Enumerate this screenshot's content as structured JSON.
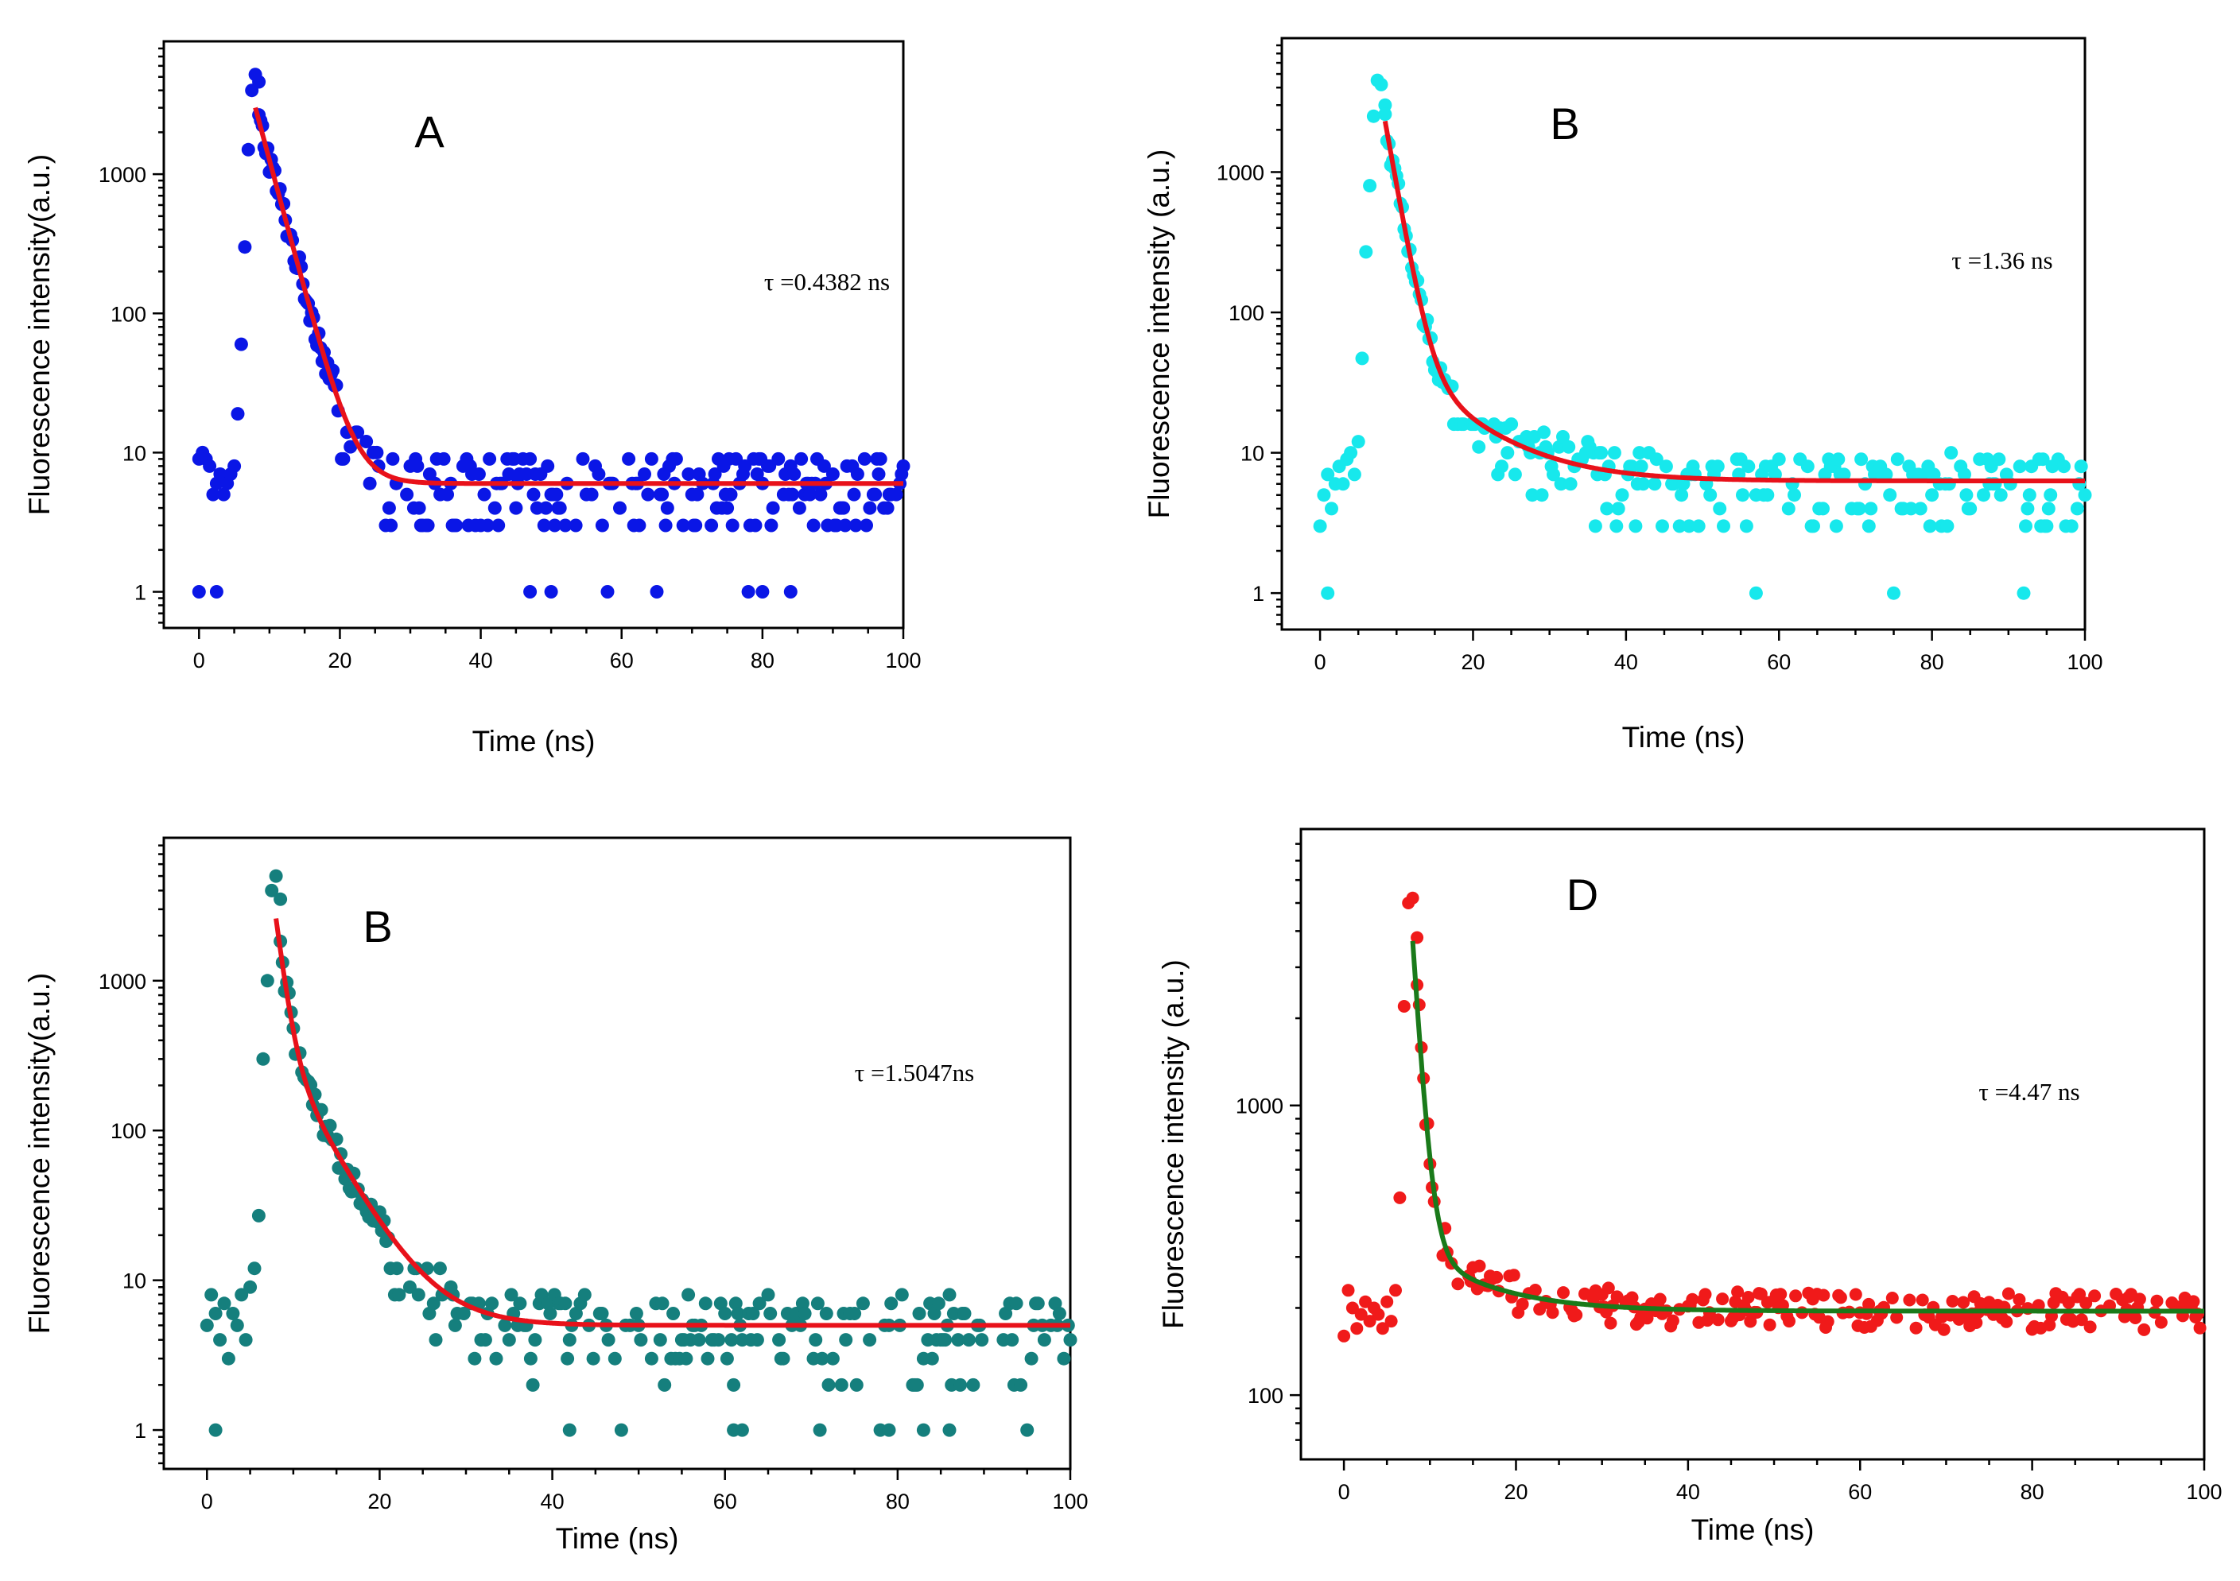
{
  "chart_data": [
    {
      "type": "scatter",
      "panel_label": "A",
      "annotation": "τ  =0.4382 ns",
      "xlabel": "Time (ns)",
      "ylabel": "Fluorescence intensity(a.u.)",
      "xscale": "linear",
      "yscale": "log",
      "xlim": [
        -5,
        100
      ],
      "ylim": [
        0.55,
        9000
      ],
      "xticks": [
        0,
        20,
        40,
        60,
        80,
        100
      ],
      "yticks": [
        1,
        10,
        100,
        1000
      ],
      "xticklabels": [
        "0",
        "20",
        "40",
        "60",
        "80",
        "100"
      ],
      "yticklabels": [
        "1",
        "10",
        "100",
        "1000"
      ],
      "scatter_color": "#0a16e6",
      "fit_color": "#e8111a",
      "series": [
        {
          "name": "data",
          "peak": {
            "rise": [
              [
                0,
                9
              ],
              [
                0.5,
                10
              ],
              [
                1,
                9
              ],
              [
                1.5,
                8
              ],
              [
                2,
                5
              ],
              [
                2.5,
                6
              ],
              [
                3,
                7
              ],
              [
                3.5,
                5
              ],
              [
                4,
                6
              ],
              [
                4.5,
                7
              ],
              [
                5,
                8
              ],
              [
                5.5,
                19
              ],
              [
                6,
                60
              ],
              [
                6.5,
                300
              ],
              [
                7,
                1500
              ],
              [
                7.5,
                4000
              ],
              [
                8,
                5200
              ],
              [
                8.5,
                4600
              ]
            ]
          },
          "decay_peak": 3000,
          "decay_tau": 2.3,
          "baseline": 6,
          "noise_floor_values": [
            1,
            2,
            3,
            4,
            5,
            6,
            7,
            8,
            9,
            10,
            11,
            12,
            13,
            14
          ],
          "low_outliers": [
            [
              0,
              1
            ],
            [
              2.5,
              1
            ],
            [
              47,
              1
            ],
            [
              50,
              1
            ],
            [
              58,
              1
            ],
            [
              65,
              1
            ],
            [
              78,
              1
            ],
            [
              80,
              1
            ],
            [
              84,
              1
            ]
          ]
        },
        {
          "name": "fit",
          "start_x": 8,
          "end_x": 100,
          "peak_value": 3000,
          "tau": 2.3,
          "baseline": 6
        }
      ]
    },
    {
      "type": "scatter",
      "panel_label": "B",
      "annotation": "τ  =1.36 ns",
      "xlabel": "Time (ns)",
      "ylabel": "Fluorescence intensity (a.u.)",
      "xscale": "linear",
      "yscale": "log",
      "xlim": [
        -5,
        100
      ],
      "ylim": [
        0.55,
        9000
      ],
      "xticks": [
        0,
        20,
        40,
        60,
        80,
        100
      ],
      "yticks": [
        1,
        10,
        100,
        1000
      ],
      "xticklabels": [
        "0",
        "20",
        "40",
        "60",
        "80",
        "100"
      ],
      "yticklabels": [
        "1",
        "10",
        "100",
        "1000"
      ],
      "scatter_color": "#17e8ec",
      "fit_color": "#e8111a",
      "series": [
        {
          "name": "data",
          "peak": {
            "rise": [
              [
                0,
                3
              ],
              [
                0.5,
                5
              ],
              [
                1,
                7
              ],
              [
                1.5,
                4
              ],
              [
                2,
                6
              ],
              [
                2.5,
                8
              ],
              [
                3,
                6
              ],
              [
                3.5,
                9
              ],
              [
                4,
                10
              ],
              [
                4.5,
                7
              ],
              [
                5,
                12
              ],
              [
                5.5,
                47
              ],
              [
                6,
                270
              ],
              [
                6.5,
                800
              ],
              [
                7,
                2500
              ],
              [
                7.5,
                4500
              ],
              [
                8,
                4200
              ],
              [
                8.5,
                3000
              ]
            ]
          },
          "decay_peak": 2300,
          "decay_tau": 1.4,
          "decay_tau2": 8,
          "decay_amp2": 45,
          "baseline": 6.3,
          "noise_floor_values": [
            3,
            4,
            5,
            6,
            7,
            8,
            9,
            10,
            11,
            12,
            13,
            14,
            15,
            16
          ],
          "low_outliers": [
            [
              1,
              1
            ],
            [
              57,
              1
            ],
            [
              75,
              1
            ],
            [
              92,
              1
            ]
          ]
        },
        {
          "name": "fit",
          "start_x": 8.5,
          "end_x": 100,
          "peak_value": 2300,
          "tau": 1.4,
          "tau2": 8,
          "amp2": 45,
          "baseline": 6.3
        }
      ]
    },
    {
      "type": "scatter",
      "panel_label": "B",
      "annotation": "τ  =1.5047ns",
      "xlabel": "Time (ns)",
      "ylabel": "Fluorescence intensity(a.u.)",
      "xscale": "linear",
      "yscale": "log",
      "xlim": [
        -5,
        100
      ],
      "ylim": [
        0.55,
        9000
      ],
      "xticks": [
        0,
        20,
        40,
        60,
        80,
        100
      ],
      "yticks": [
        1,
        10,
        100,
        1000
      ],
      "xticklabels": [
        "0",
        "20",
        "40",
        "60",
        "80",
        "100"
      ],
      "yticklabels": [
        "1",
        "10",
        "100",
        "1000"
      ],
      "scatter_color": "#157f7d",
      "fit_color": "#e8111a",
      "series": [
        {
          "name": "data",
          "peak": {
            "rise": [
              [
                0,
                5
              ],
              [
                0.5,
                8
              ],
              [
                1,
                6
              ],
              [
                1.5,
                4
              ],
              [
                2,
                7
              ],
              [
                2.5,
                3
              ],
              [
                3,
                6
              ],
              [
                3.5,
                5
              ],
              [
                4,
                8
              ],
              [
                4.5,
                4
              ],
              [
                5,
                9
              ],
              [
                5.5,
                12
              ],
              [
                6,
                27
              ],
              [
                6.5,
                300
              ],
              [
                7,
                1000
              ],
              [
                7.5,
                4000
              ],
              [
                8,
                5000
              ],
              [
                8.5,
                3500
              ]
            ]
          },
          "decay_peak": 2600,
          "decay_tau": 0.9,
          "decay_tau2": 4.2,
          "decay_amp2": 350,
          "baseline": 5,
          "noise_floor_values": [
            2,
            3,
            4,
            5,
            6,
            7,
            8,
            9,
            10,
            11,
            12
          ],
          "low_outliers": [
            [
              1,
              1
            ],
            [
              42,
              1
            ],
            [
              48,
              1
            ],
            [
              61,
              1
            ],
            [
              62,
              1
            ],
            [
              71,
              1
            ],
            [
              78,
              1
            ],
            [
              79,
              1
            ],
            [
              83,
              1
            ],
            [
              86,
              1
            ],
            [
              95,
              1
            ]
          ]
        },
        {
          "name": "fit",
          "start_x": 8,
          "end_x": 100,
          "peak_value": 2600,
          "tau": 0.9,
          "tau2": 4.2,
          "amp2": 350,
          "baseline": 5
        }
      ]
    },
    {
      "type": "scatter",
      "panel_label": "D",
      "annotation": "τ  =4.47 ns",
      "xlabel": "Time (ns)",
      "ylabel": "Fluorescence intensity (a.u.)",
      "xscale": "linear",
      "yscale": "log",
      "xlim": [
        -5,
        100
      ],
      "ylim": [
        60,
        9000
      ],
      "xticks": [
        0,
        20,
        40,
        60,
        80,
        100
      ],
      "yticks": [
        100,
        1000
      ],
      "xticklabels": [
        "0",
        "20",
        "40",
        "60",
        "80",
        "100"
      ],
      "yticklabels": [
        "100",
        "1000"
      ],
      "scatter_color": "#f01a1a",
      "fit_color": "#1a7a1a",
      "series": [
        {
          "name": "data",
          "peak": {
            "rise": [
              [
                0,
                160
              ],
              [
                0.5,
                230
              ],
              [
                1,
                200
              ],
              [
                1.5,
                170
              ],
              [
                2,
                190
              ],
              [
                2.5,
                210
              ],
              [
                3,
                180
              ],
              [
                3.5,
                200
              ],
              [
                4,
                190
              ],
              [
                4.5,
                170
              ],
              [
                5,
                210
              ],
              [
                5.5,
                180
              ],
              [
                6,
                230
              ],
              [
                6.5,
                480
              ],
              [
                7,
                2200
              ],
              [
                7.5,
                5000
              ],
              [
                8,
                5200
              ],
              [
                8.5,
                3800
              ]
            ]
          },
          "decay_peak": 3500,
          "decay_tau": 0.9,
          "decay_tau2": 8,
          "decay_amp2": 130,
          "baseline": 195,
          "noise_floor_values": [
            170,
            180,
            190,
            200,
            210,
            220,
            230,
            240
          ],
          "low_outliers": []
        },
        {
          "name": "fit",
          "start_x": 8,
          "end_x": 100,
          "peak_value": 3500,
          "tau": 0.9,
          "tau2": 8,
          "amp2": 130,
          "baseline": 195
        }
      ]
    }
  ]
}
